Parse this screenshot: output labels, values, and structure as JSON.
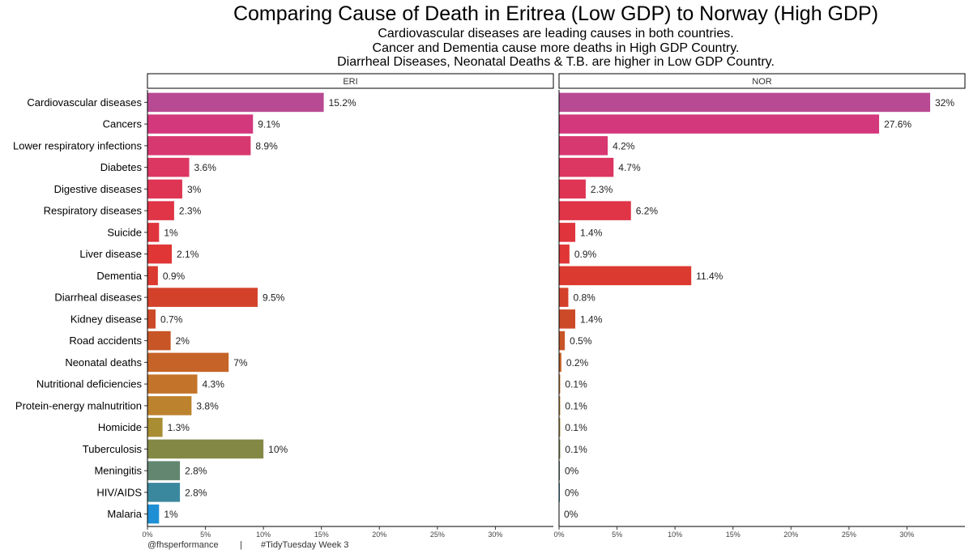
{
  "title": "Comparing Cause of Death in Eritrea (Low GDP) to Norway (High GDP)",
  "subtitle_lines": [
    "Cardiovascular diseases are leading causes in both countries.",
    "Cancer and Dementia cause more deaths in High GDP Country.",
    "Diarrheal Diseases, Neonatal Deaths & T.B. are higher in Low GDP Country."
  ],
  "caption": {
    "handle": "@fhsperformance",
    "separator": "|",
    "tag": "#TidyTuesday Week 3"
  },
  "chart_data": {
    "type": "bar",
    "orientation": "horizontal",
    "faceted": true,
    "categories": [
      "Cardiovascular diseases",
      "Cancers",
      "Lower respiratory infections",
      "Diabetes",
      "Digestive diseases",
      "Respiratory diseases",
      "Suicide",
      "Liver disease",
      "Dementia",
      "Diarrheal diseases",
      "Kidney disease",
      "Road accidents",
      "Neonatal deaths",
      "Nutritional deficiencies",
      "Protein-energy malnutrition",
      "Homicide",
      "Tuberculosis",
      "Meningitis",
      "HIV/AIDS",
      "Malaria"
    ],
    "colors": [
      "#b84a93",
      "#d3387d",
      "#d83870",
      "#dc3662",
      "#de3555",
      "#e03447",
      "#e0343c",
      "#e03636",
      "#db3a30",
      "#d3412b",
      "#cc4a28",
      "#c85526",
      "#c66328",
      "#c4742a",
      "#bd822d",
      "#a88d33",
      "#838845",
      "#628670",
      "#3a889e",
      "#1e8fd4"
    ],
    "panels": [
      {
        "name": "ERI",
        "values": [
          15.2,
          9.1,
          8.9,
          3.6,
          3.0,
          2.3,
          1.0,
          2.1,
          0.9,
          9.5,
          0.7,
          2.0,
          7.0,
          4.3,
          3.8,
          1.3,
          10.0,
          2.8,
          2.8,
          1.0
        ],
        "labels": [
          "15.2%",
          "9.1%",
          "8.9%",
          "3.6%",
          "3%",
          "2.3%",
          "1%",
          "2.1%",
          "0.9%",
          "9.5%",
          "0.7%",
          "2%",
          "7%",
          "4.3%",
          "3.8%",
          "1.3%",
          "10%",
          "2.8%",
          "2.8%",
          "1%"
        ]
      },
      {
        "name": "NOR",
        "values": [
          32.0,
          27.6,
          4.2,
          4.7,
          2.3,
          6.2,
          1.4,
          0.9,
          11.4,
          0.8,
          1.4,
          0.5,
          0.2,
          0.1,
          0.1,
          0.1,
          0.1,
          0.04,
          0.04,
          0.0
        ],
        "labels": [
          "32%",
          "27.6%",
          "4.2%",
          "4.7%",
          "2.3%",
          "6.2%",
          "1.4%",
          "0.9%",
          "11.4%",
          "0.8%",
          "1.4%",
          "0.5%",
          "0.2%",
          "0.1%",
          "0.1%",
          "0.1%",
          "0.1%",
          "0%",
          "0%",
          "0%"
        ]
      }
    ],
    "x_ticks": [
      0,
      5,
      10,
      15,
      20,
      25,
      30
    ],
    "x_tick_labels": [
      "0%",
      "5%",
      "10%",
      "15%",
      "20%",
      "25%",
      "30%"
    ],
    "xlim": [
      0,
      35
    ],
    "xlabel": "",
    "ylabel": "",
    "grid": false,
    "legend": "none"
  }
}
